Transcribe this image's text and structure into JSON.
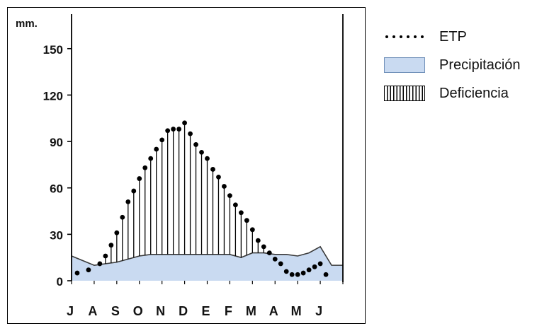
{
  "chart_data": {
    "type": "area",
    "ylabel": "mm.",
    "ylim": [
      0,
      170
    ],
    "yticks": [
      0,
      30,
      60,
      90,
      120,
      150
    ],
    "categories": [
      "J",
      "A",
      "S",
      "O",
      "N",
      "D",
      "E",
      "F",
      "M",
      "A",
      "M",
      "J"
    ],
    "grid": false,
    "legend_position": "right",
    "series": [
      {
        "name": "ETP",
        "style": "dotted",
        "x": [
          0.25,
          0.75,
          1.25,
          1.5,
          1.75,
          2.0,
          2.25,
          2.5,
          2.75,
          3.0,
          3.25,
          3.5,
          3.75,
          4.0,
          4.25,
          4.5,
          4.75,
          5.0,
          5.25,
          5.5,
          5.75,
          6.0,
          6.25,
          6.5,
          6.75,
          7.0,
          7.25,
          7.5,
          7.75,
          8.0,
          8.25,
          8.5,
          8.75,
          9.0,
          9.25,
          9.5,
          9.75,
          10.0,
          10.25,
          10.5,
          10.75,
          11.0,
          11.25
        ],
        "values": [
          5,
          7,
          11,
          16,
          23,
          31,
          41,
          51,
          58,
          66,
          73,
          79,
          85,
          91,
          97,
          98,
          98,
          102,
          95,
          88,
          83,
          79,
          72,
          67,
          61,
          55,
          49,
          44,
          39,
          33,
          26,
          22,
          18,
          14,
          11,
          6,
          4,
          4,
          5,
          7,
          9,
          11,
          4
        ]
      },
      {
        "name": "Precipitación",
        "style": "area",
        "x": [
          0.0,
          1.0,
          2.0,
          2.5,
          3.0,
          3.5,
          4.0,
          4.5,
          5.0,
          5.5,
          6.0,
          6.5,
          7.0,
          7.5,
          8.0,
          8.5,
          9.0,
          9.5,
          10.0,
          10.5,
          11.0,
          11.5
        ],
        "values": [
          16,
          10,
          12,
          14,
          16,
          17,
          17,
          17,
          17,
          17,
          17,
          17,
          17,
          15,
          18,
          18,
          17,
          17,
          16,
          18,
          22,
          10
        ]
      },
      {
        "name": "Deficiencia",
        "style": "hatch"
      }
    ]
  },
  "legend": {
    "items": [
      {
        "label": "ETP",
        "swatch": "dots"
      },
      {
        "label": "Precipitación",
        "swatch": "fill"
      },
      {
        "label": "Deficiencia",
        "swatch": "hatch"
      }
    ]
  },
  "colors": {
    "precip_fill": "#c9daf1",
    "precip_line": "#3a3a3a",
    "ink": "#000000"
  }
}
